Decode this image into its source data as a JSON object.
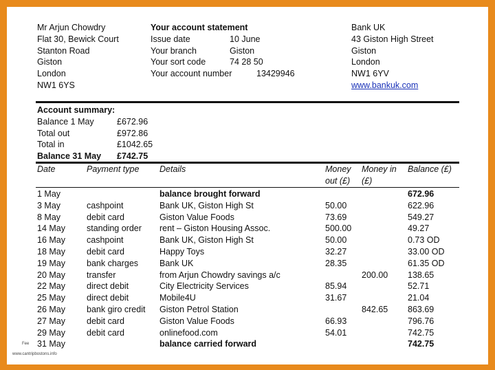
{
  "customer": {
    "lines": [
      "Mr Arjun Chowdry",
      "Flat 30, Bewick Court",
      "Stanton Road",
      "Giston",
      "London",
      "NW1 6YS"
    ]
  },
  "statement": {
    "title": "Your account statement",
    "rows": [
      {
        "label": "Issue date",
        "value": "10 June"
      },
      {
        "label": "Your branch",
        "value": "Giston"
      },
      {
        "label": "Your sort code",
        "value": "74 28 50"
      },
      {
        "label": "Your account number",
        "value": "13429946"
      }
    ]
  },
  "bank": {
    "lines": [
      "Bank UK",
      "43 Giston High Street",
      "Giston",
      "London",
      "NW1 6YV"
    ],
    "website": "www.bankuk.com"
  },
  "summary": {
    "heading": "Account summary:",
    "rows": [
      {
        "label": "Balance 1 May",
        "value": "£672.96",
        "bold": false
      },
      {
        "label": "Total out",
        "value": "£972.86",
        "bold": false
      },
      {
        "label": "Total in",
        "value": "£1042.65",
        "bold": false
      },
      {
        "label": "Balance 31 May",
        "value": "£742.75",
        "bold": true
      }
    ]
  },
  "table": {
    "headers": {
      "date": "Date",
      "type": "Payment type",
      "details": "Details",
      "out_l1": "Money",
      "out_l2": "out (£)",
      "in_l1": "Money in",
      "in_l2": "(£)",
      "balance": "Balance (£)"
    },
    "rows": [
      {
        "date": "1 May",
        "type": "",
        "details": "balance brought forward",
        "out": "",
        "in": "",
        "balance": "672.96",
        "bold": true
      },
      {
        "date": "3 May",
        "type": "cashpoint",
        "details": "Bank UK, Giston High St",
        "out": "50.00",
        "in": "",
        "balance": "622.96",
        "bold": false
      },
      {
        "date": "8 May",
        "type": "debit card",
        "details": "Giston Value Foods",
        "out": "73.69",
        "in": "",
        "balance": "549.27",
        "bold": false
      },
      {
        "date": "14 May",
        "type": "standing order",
        "details": "rent – Giston Housing Assoc.",
        "out": "500.00",
        "in": "",
        "balance": "49.27",
        "bold": false
      },
      {
        "date": "16 May",
        "type": "cashpoint",
        "details": "Bank UK, Giston High St",
        "out": "50.00",
        "in": "",
        "balance": "0.73 OD",
        "bold": false
      },
      {
        "date": "18 May",
        "type": "debit card",
        "details": "Happy Toys",
        "out": "32.27",
        "in": "",
        "balance": "33.00 OD",
        "bold": false
      },
      {
        "date": "19 May",
        "type": "bank charges",
        "details": "Bank UK",
        "out": "28.35",
        "in": "",
        "balance": "61.35 OD",
        "bold": false
      },
      {
        "date": "20 May",
        "type": "transfer",
        "details": "from Arjun Chowdry savings a/c",
        "out": "",
        "in": "200.00",
        "balance": "138.65",
        "bold": false
      },
      {
        "date": "22 May",
        "type": "direct debit",
        "details": "City Electricity Services",
        "out": "85.94",
        "in": "",
        "balance": "52.71",
        "bold": false
      },
      {
        "date": "25 May",
        "type": "direct debit",
        "details": "Mobile4U",
        "out": "31.67",
        "in": "",
        "balance": "21.04",
        "bold": false
      },
      {
        "date": "26 May",
        "type": "bank giro credit",
        "details": "Giston Petrol Station",
        "out": "",
        "in": "842.65",
        "balance": "863.69",
        "bold": false
      },
      {
        "date": "27 May",
        "type": "debit card",
        "details": "Giston Value Foods",
        "out": "66.93",
        "in": "",
        "balance": "796.76",
        "bold": false
      },
      {
        "date": "29 May",
        "type": "debit card",
        "details": "onlinefood.com",
        "out": "54.01",
        "in": "",
        "balance": "742.75",
        "bold": false
      },
      {
        "date": "31 May",
        "type": "",
        "details": "balance carried forward",
        "out": "",
        "in": "",
        "balance": "742.75",
        "bold": true
      }
    ]
  },
  "watermark": {
    "prefix": "Fee",
    "url": "www.cantripbostons.info"
  }
}
